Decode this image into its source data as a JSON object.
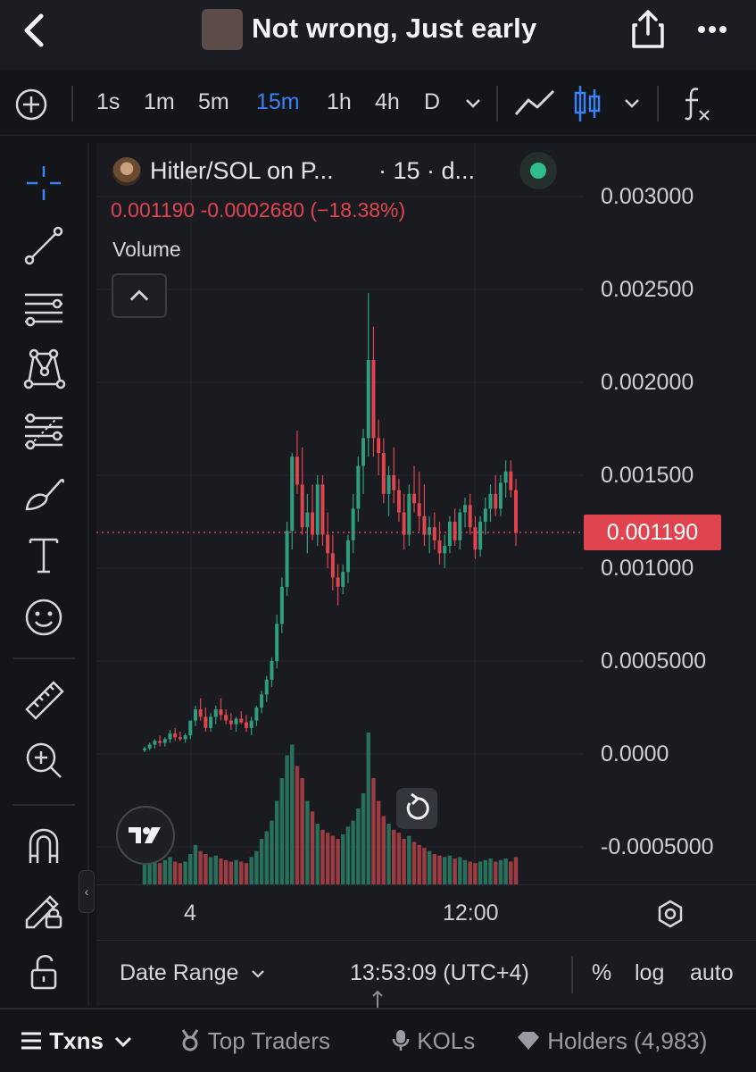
{
  "header": {
    "title": "Not wrong, Just early"
  },
  "toolbar": {
    "timeframes": [
      "1s",
      "1m",
      "5m",
      "15m",
      "1h",
      "4h",
      "D"
    ],
    "active_timeframe": "15m"
  },
  "legend": {
    "symbol": "Hitler/SOL on P...",
    "timeframe_suffix": "· 15 · d...",
    "last": "0.001190",
    "change": "-0.0002680",
    "change_pct": "(−18.38%)",
    "volume_label": "Volume"
  },
  "colors": {
    "up": "#2f9e80",
    "down": "#e0454f",
    "accent": "#3b82f6",
    "background": "#1a1b20"
  },
  "y_axis_labels": [
    "0.003000",
    "0.002500",
    "0.002000",
    "0.001500",
    "0.001000",
    "0.0005000",
    "0.0000",
    "-0.0005000"
  ],
  "current_price_tag": "0.001190",
  "x_axis_labels": [
    "4",
    "12:00"
  ],
  "footer": {
    "date_range": "Date Range",
    "time": "13:53:09 (UTC+4)",
    "percent": "%",
    "log": "log",
    "auto": "auto"
  },
  "bottom_tabs": {
    "txns": "Txns",
    "top_traders": "Top Traders",
    "kols": "KOLs",
    "holders": "Holders (4,983)"
  },
  "chart_data": {
    "type": "candlestick",
    "interval": "15m",
    "ylim": [
      -0.0005,
      0.003
    ],
    "candles": [
      [
        2e-05,
        4e-05,
        1e-05,
        3e-05,
        "up"
      ],
      [
        3e-05,
        6e-05,
        2e-05,
        5e-05,
        "up"
      ],
      [
        5e-05,
        8e-05,
        3e-05,
        7e-05,
        "up"
      ],
      [
        7e-05,
        0.0001,
        4e-05,
        6e-05,
        "down"
      ],
      [
        6e-05,
        9e-05,
        4e-05,
        8e-05,
        "up"
      ],
      [
        8e-05,
        0.00013,
        6e-05,
        0.00011,
        "up"
      ],
      [
        0.00011,
        0.00014,
        7e-05,
        9e-05,
        "down"
      ],
      [
        9e-05,
        0.00012,
        7e-05,
        8e-05,
        "down"
      ],
      [
        8e-05,
        0.00011,
        6e-05,
        0.0001,
        "up"
      ],
      [
        0.0001,
        0.00015,
        8e-05,
        0.00018,
        "up"
      ],
      [
        0.00018,
        0.00026,
        0.00015,
        0.00024,
        "up"
      ],
      [
        0.00024,
        0.0003,
        0.00018,
        0.0002,
        "down"
      ],
      [
        0.0002,
        0.00025,
        0.00012,
        0.00014,
        "down"
      ],
      [
        0.00014,
        0.00022,
        0.00012,
        0.0002,
        "up"
      ],
      [
        0.0002,
        0.00026,
        0.00016,
        0.00024,
        "up"
      ],
      [
        0.00024,
        0.0003,
        0.00018,
        0.00021,
        "down"
      ],
      [
        0.00021,
        0.00024,
        0.00016,
        0.00018,
        "down"
      ],
      [
        0.00018,
        0.00022,
        0.00013,
        0.00016,
        "down"
      ],
      [
        0.00016,
        0.0002,
        0.00012,
        0.00019,
        "up"
      ],
      [
        0.00019,
        0.00023,
        0.00016,
        0.00017,
        "down"
      ],
      [
        0.00017,
        0.00021,
        0.00012,
        0.00014,
        "down"
      ],
      [
        0.00014,
        0.0002,
        0.0001,
        0.00018,
        "up"
      ],
      [
        0.00018,
        0.00026,
        0.00015,
        0.00025,
        "up"
      ],
      [
        0.00025,
        0.00034,
        0.00022,
        0.00032,
        "up"
      ],
      [
        0.00032,
        0.00042,
        0.00028,
        0.0004,
        "up"
      ],
      [
        0.0004,
        0.00052,
        0.00036,
        0.0005,
        "up"
      ],
      [
        0.0005,
        0.00075,
        0.00046,
        0.0007,
        "up"
      ],
      [
        0.0007,
        0.00095,
        0.00065,
        0.0009,
        "up"
      ],
      [
        0.0009,
        0.00125,
        0.00085,
        0.0012,
        "up"
      ],
      [
        0.0012,
        0.00162,
        0.0011,
        0.0016,
        "up"
      ],
      [
        0.0016,
        0.00174,
        0.0014,
        0.00145,
        "down"
      ],
      [
        0.00145,
        0.00165,
        0.00118,
        0.00122,
        "down"
      ],
      [
        0.00122,
        0.0014,
        0.00108,
        0.0013,
        "up"
      ],
      [
        0.0013,
        0.00145,
        0.00115,
        0.00118,
        "down"
      ],
      [
        0.00118,
        0.0015,
        0.00112,
        0.00145,
        "up"
      ],
      [
        0.00145,
        0.0015,
        0.00112,
        0.00118,
        "down"
      ],
      [
        0.00118,
        0.0013,
        0.001,
        0.00108,
        "down"
      ],
      [
        0.00108,
        0.00118,
        0.00088,
        0.00095,
        "down"
      ],
      [
        0.00095,
        0.00102,
        0.0008,
        0.0009,
        "down"
      ],
      [
        0.0009,
        0.00102,
        0.00086,
        0.00098,
        "up"
      ],
      [
        0.00098,
        0.00118,
        0.00092,
        0.00115,
        "up"
      ],
      [
        0.00115,
        0.0014,
        0.00108,
        0.00132,
        "up"
      ],
      [
        0.00132,
        0.0016,
        0.00125,
        0.00155,
        "up"
      ],
      [
        0.00155,
        0.00175,
        0.0014,
        0.0017,
        "up"
      ],
      [
        0.0017,
        0.00248,
        0.0016,
        0.00212,
        "up"
      ],
      [
        0.00212,
        0.0023,
        0.0016,
        0.0017,
        "down"
      ],
      [
        0.0017,
        0.0018,
        0.0015,
        0.00162,
        "down"
      ],
      [
        0.00162,
        0.0017,
        0.00135,
        0.0014,
        "down"
      ],
      [
        0.0014,
        0.00155,
        0.00128,
        0.0015,
        "up"
      ],
      [
        0.0015,
        0.00165,
        0.00135,
        0.00142,
        "down"
      ],
      [
        0.00142,
        0.00148,
        0.00125,
        0.0013,
        "down"
      ],
      [
        0.0013,
        0.0014,
        0.0011,
        0.00118,
        "down"
      ],
      [
        0.00118,
        0.00145,
        0.00112,
        0.0014,
        "up"
      ],
      [
        0.0014,
        0.00155,
        0.0013,
        0.00135,
        "down"
      ],
      [
        0.00135,
        0.00152,
        0.0012,
        0.00128,
        "down"
      ],
      [
        0.00128,
        0.00145,
        0.00112,
        0.00118,
        "down"
      ],
      [
        0.00118,
        0.00128,
        0.00108,
        0.00122,
        "up"
      ],
      [
        0.00122,
        0.0013,
        0.0011,
        0.00115,
        "down"
      ],
      [
        0.00115,
        0.00125,
        0.00102,
        0.00108,
        "down"
      ],
      [
        0.00108,
        0.00118,
        0.001,
        0.00112,
        "up"
      ],
      [
        0.00112,
        0.00128,
        0.00108,
        0.00125,
        "up"
      ],
      [
        0.00125,
        0.00132,
        0.00112,
        0.00115,
        "down"
      ],
      [
        0.00115,
        0.00132,
        0.0011,
        0.0013,
        "up"
      ],
      [
        0.0013,
        0.00138,
        0.00122,
        0.00134,
        "up"
      ],
      [
        0.00134,
        0.0014,
        0.00118,
        0.00122,
        "down"
      ],
      [
        0.00122,
        0.00128,
        0.00105,
        0.0011,
        "down"
      ],
      [
        0.0011,
        0.00128,
        0.00106,
        0.00125,
        "up"
      ],
      [
        0.00125,
        0.00138,
        0.00118,
        0.00132,
        "up"
      ],
      [
        0.00132,
        0.00145,
        0.00125,
        0.0014,
        "up"
      ],
      [
        0.0014,
        0.0015,
        0.00128,
        0.00132,
        "down"
      ],
      [
        0.00132,
        0.0015,
        0.00128,
        0.00146,
        "up"
      ],
      [
        0.00146,
        0.00158,
        0.00138,
        0.00152,
        "up"
      ],
      [
        0.00152,
        0.00158,
        0.00138,
        0.00142,
        "down"
      ],
      [
        0.00142,
        0.00148,
        0.00112,
        0.00119,
        "down"
      ]
    ],
    "volume": [
      [
        0.16,
        "up"
      ],
      [
        0.15,
        "up"
      ],
      [
        0.17,
        "up"
      ],
      [
        0.14,
        "down"
      ],
      [
        0.16,
        "up"
      ],
      [
        0.18,
        "up"
      ],
      [
        0.15,
        "down"
      ],
      [
        0.14,
        "down"
      ],
      [
        0.15,
        "up"
      ],
      [
        0.2,
        "up"
      ],
      [
        0.26,
        "up"
      ],
      [
        0.22,
        "down"
      ],
      [
        0.2,
        "down"
      ],
      [
        0.18,
        "up"
      ],
      [
        0.19,
        "up"
      ],
      [
        0.17,
        "down"
      ],
      [
        0.16,
        "down"
      ],
      [
        0.15,
        "down"
      ],
      [
        0.16,
        "up"
      ],
      [
        0.15,
        "down"
      ],
      [
        0.14,
        "down"
      ],
      [
        0.18,
        "up"
      ],
      [
        0.22,
        "up"
      ],
      [
        0.3,
        "up"
      ],
      [
        0.35,
        "up"
      ],
      [
        0.42,
        "up"
      ],
      [
        0.55,
        "up"
      ],
      [
        0.7,
        "up"
      ],
      [
        0.85,
        "up"
      ],
      [
        0.92,
        "up"
      ],
      [
        0.78,
        "down"
      ],
      [
        0.7,
        "down"
      ],
      [
        0.55,
        "up"
      ],
      [
        0.48,
        "down"
      ],
      [
        0.4,
        "up"
      ],
      [
        0.36,
        "down"
      ],
      [
        0.34,
        "down"
      ],
      [
        0.32,
        "down"
      ],
      [
        0.3,
        "down"
      ],
      [
        0.33,
        "up"
      ],
      [
        0.38,
        "up"
      ],
      [
        0.42,
        "up"
      ],
      [
        0.5,
        "up"
      ],
      [
        0.6,
        "up"
      ],
      [
        1.0,
        "up"
      ],
      [
        0.7,
        "down"
      ],
      [
        0.55,
        "down"
      ],
      [
        0.45,
        "down"
      ],
      [
        0.4,
        "up"
      ],
      [
        0.36,
        "down"
      ],
      [
        0.34,
        "down"
      ],
      [
        0.3,
        "down"
      ],
      [
        0.32,
        "up"
      ],
      [
        0.28,
        "down"
      ],
      [
        0.26,
        "down"
      ],
      [
        0.24,
        "down"
      ],
      [
        0.22,
        "up"
      ],
      [
        0.2,
        "down"
      ],
      [
        0.19,
        "down"
      ],
      [
        0.18,
        "up"
      ],
      [
        0.19,
        "up"
      ],
      [
        0.17,
        "down"
      ],
      [
        0.18,
        "up"
      ],
      [
        0.16,
        "up"
      ],
      [
        0.15,
        "down"
      ],
      [
        0.14,
        "down"
      ],
      [
        0.15,
        "up"
      ],
      [
        0.16,
        "up"
      ],
      [
        0.17,
        "up"
      ],
      [
        0.15,
        "down"
      ],
      [
        0.16,
        "up"
      ],
      [
        0.17,
        "up"
      ],
      [
        0.15,
        "down"
      ],
      [
        0.18,
        "down"
      ]
    ]
  }
}
